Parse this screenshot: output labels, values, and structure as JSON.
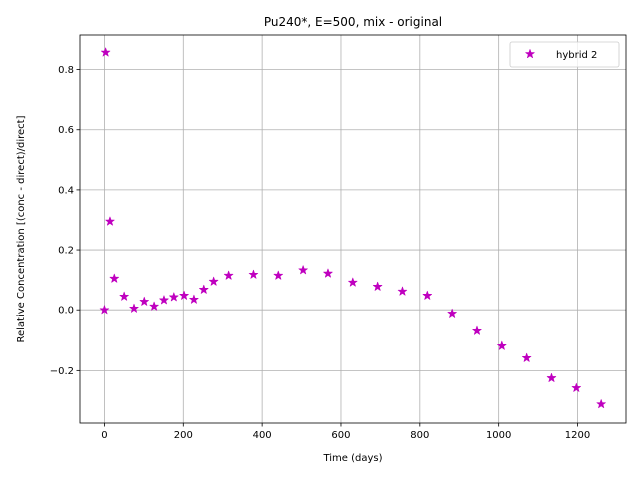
{
  "chart_data": {
    "type": "scatter",
    "title": "Pu240*, E=500, mix - original",
    "xlabel": "Time (days)",
    "ylabel": "Relative Concentration [(conc - direct)/direct]",
    "xlim": [
      -62,
      1323
    ],
    "ylim": [
      -0.375,
      0.915
    ],
    "xticks": [
      0,
      200,
      400,
      600,
      800,
      1000,
      1200
    ],
    "yticks": [
      -0.2,
      0.0,
      0.2,
      0.4,
      0.6,
      0.8
    ],
    "xtick_labels": [
      "0",
      "200",
      "400",
      "600",
      "800",
      "1000",
      "1200"
    ],
    "ytick_labels": [
      "−0.2",
      "0.0",
      "0.2",
      "0.4",
      "0.6",
      "0.8"
    ],
    "grid": true,
    "legend_position": "top-right",
    "marker": "star",
    "color": "#bf00bf",
    "series": [
      {
        "name": "hybrid 2",
        "x": [
          0,
          3,
          14,
          25,
          50,
          75,
          101,
          126,
          151,
          176,
          202,
          227,
          252,
          277,
          315,
          378,
          441,
          504,
          567,
          630,
          693,
          756,
          819,
          882,
          945,
          1008,
          1071,
          1134,
          1197,
          1260
        ],
        "y": [
          0.0,
          0.857,
          0.295,
          0.105,
          0.045,
          0.005,
          0.028,
          0.012,
          0.033,
          0.043,
          0.048,
          0.035,
          0.068,
          0.095,
          0.115,
          0.118,
          0.115,
          0.133,
          0.122,
          0.092,
          0.078,
          0.062,
          0.048,
          -0.012,
          -0.068,
          -0.118,
          -0.158,
          -0.225,
          -0.258,
          -0.312
        ]
      }
    ]
  }
}
